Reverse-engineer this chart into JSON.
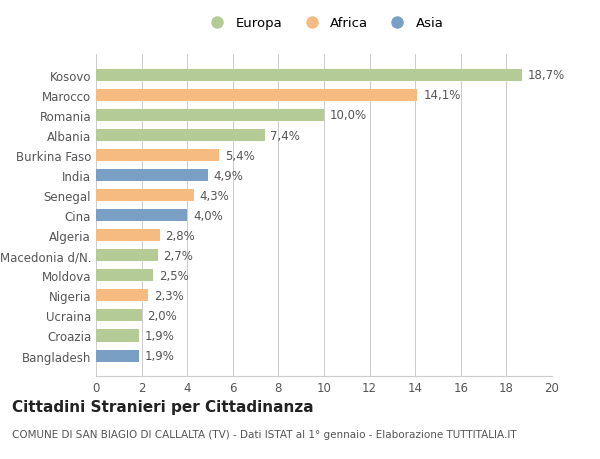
{
  "countries": [
    "Kosovo",
    "Marocco",
    "Romania",
    "Albania",
    "Burkina Faso",
    "India",
    "Senegal",
    "Cina",
    "Algeria",
    "Macedonia d/N.",
    "Moldova",
    "Nigeria",
    "Ucraina",
    "Croazia",
    "Bangladesh"
  ],
  "values": [
    18.7,
    14.1,
    10.0,
    7.4,
    5.4,
    4.9,
    4.3,
    4.0,
    2.8,
    2.7,
    2.5,
    2.3,
    2.0,
    1.9,
    1.9
  ],
  "labels": [
    "18,7%",
    "14,1%",
    "10,0%",
    "7,4%",
    "5,4%",
    "4,9%",
    "4,3%",
    "4,0%",
    "2,8%",
    "2,7%",
    "2,5%",
    "2,3%",
    "2,0%",
    "1,9%",
    "1,9%"
  ],
  "continent": [
    "Europa",
    "Africa",
    "Europa",
    "Europa",
    "Africa",
    "Asia",
    "Africa",
    "Asia",
    "Africa",
    "Europa",
    "Europa",
    "Africa",
    "Europa",
    "Europa",
    "Asia"
  ],
  "color_map": {
    "Europa": "#b5cb96",
    "Africa": "#f5bb80",
    "Asia": "#7a9fc4"
  },
  "xlim": [
    0,
    20
  ],
  "xticks": [
    0,
    2,
    4,
    6,
    8,
    10,
    12,
    14,
    16,
    18,
    20
  ],
  "title": "Cittadini Stranieri per Cittadinanza",
  "subtitle": "COMUNE DI SAN BIAGIO DI CALLALTA (TV) - Dati ISTAT al 1° gennaio - Elaborazione TUTTITALIA.IT",
  "background_color": "#ffffff",
  "bar_height": 0.6,
  "grid_color": "#cccccc",
  "label_fontsize": 8.5,
  "tick_fontsize": 8.5,
  "title_fontsize": 11,
  "subtitle_fontsize": 7.5
}
